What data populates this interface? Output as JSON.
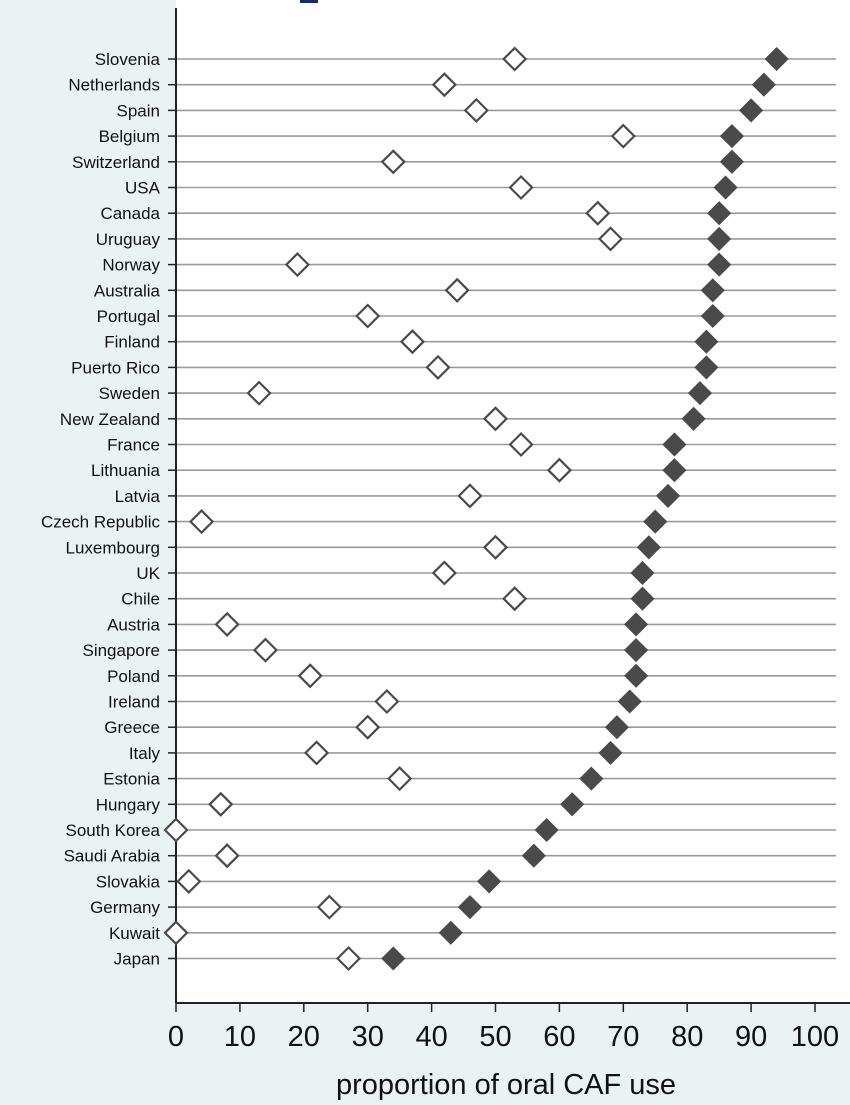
{
  "chart_data": {
    "type": "scatter",
    "xlabel": "proportion of oral CAF use",
    "ylabel": "",
    "xlim": [
      0,
      100
    ],
    "xticks": [
      0,
      10,
      20,
      30,
      40,
      50,
      60,
      70,
      80,
      90,
      100
    ],
    "grid": "horizontal lines at each country",
    "categories": [
      "Slovenia",
      "Netherlands",
      "Spain",
      "Belgium",
      "Switzerland",
      "USA",
      "Canada",
      "Uruguay",
      "Norway",
      "Australia",
      "Portugal",
      "Finland",
      "Puerto Rico",
      "Sweden",
      "New Zealand",
      "France",
      "Lithuania",
      "Latvia",
      "Czech Republic",
      "Luxembourg",
      "UK",
      "Chile",
      "Austria",
      "Singapore",
      "Poland",
      "Ireland",
      "Greece",
      "Italy",
      "Estonia",
      "Hungary",
      "South Korea",
      "Saudi Arabia",
      "Slovakia",
      "Germany",
      "Kuwait",
      "Japan"
    ],
    "series": [
      {
        "marker": "filled-diamond",
        "color": "#4a4a4a",
        "values": [
          94,
          92,
          90,
          87,
          87,
          86,
          85,
          85,
          85,
          84,
          84,
          83,
          83,
          82,
          81,
          78,
          78,
          77,
          75,
          74,
          73,
          73,
          72,
          72,
          72,
          71,
          69,
          68,
          65,
          62,
          58,
          56,
          49,
          46,
          43,
          34
        ]
      },
      {
        "marker": "hollow-diamond",
        "color": "#4a4a4a",
        "values": [
          53,
          42,
          47,
          70,
          34,
          54,
          66,
          68,
          19,
          44,
          30,
          37,
          41,
          13,
          50,
          54,
          60,
          46,
          4,
          50,
          42,
          53,
          8,
          14,
          21,
          33,
          30,
          22,
          35,
          7,
          0,
          8,
          2,
          24,
          0,
          27
        ]
      }
    ]
  }
}
